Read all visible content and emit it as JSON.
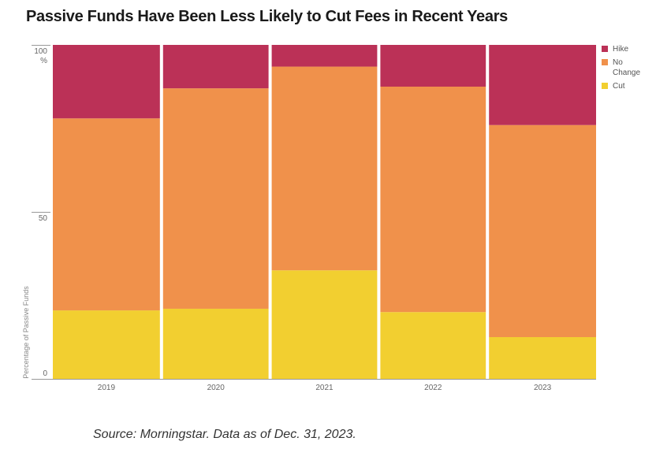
{
  "title": "Passive Funds Have Been Less Likely to Cut Fees in Recent Years",
  "source": "Source: Morningstar. Data as of Dec. 31, 2023.",
  "colors": {
    "cut": "#f2cf30",
    "no_change": "#f0914b",
    "hike": "#bb3157",
    "axis": "#999999"
  },
  "legend": [
    {
      "label": "Hike",
      "color": "#bb3157"
    },
    {
      "label": "No Change",
      "color": "#f0914b"
    },
    {
      "label": "Cut",
      "color": "#f2cf30"
    }
  ],
  "chart_data": {
    "type": "bar",
    "stacked": true,
    "title": "Passive Funds Have Been Less Likely to Cut Fees in Recent Years",
    "ylabel": "Percentage of Passive Funds",
    "xlabel": "",
    "ylim": [
      0,
      100
    ],
    "yticks": [
      "0",
      "50",
      "100"
    ],
    "y_unit": "%",
    "categories": [
      "2019",
      "2020",
      "2021",
      "2022",
      "2023"
    ],
    "series": [
      {
        "name": "Cut",
        "values": [
          20.5,
          21,
          32.5,
          20,
          12.5
        ]
      },
      {
        "name": "No Change",
        "values": [
          57.5,
          66,
          61,
          67.5,
          63.5
        ]
      },
      {
        "name": "Hike",
        "values": [
          22,
          13,
          6.5,
          12.5,
          24
        ]
      }
    ],
    "legend_position": "right",
    "grid": false
  }
}
